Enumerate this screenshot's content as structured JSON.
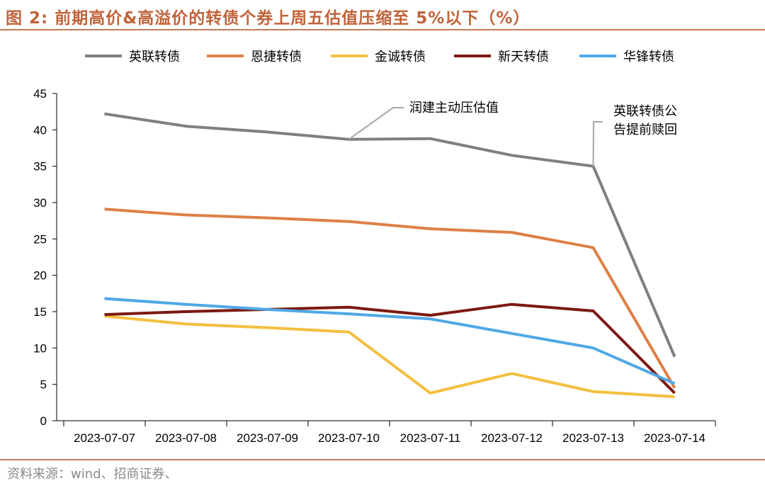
{
  "figure": {
    "title": "图 2:  前期高价&高溢价的转债个券上周五估值压缩至 5%以下（%）",
    "source": "资料来源：wind、招商证券、"
  },
  "colors": {
    "title": "#c0633a",
    "rule": "#c77b55"
  },
  "chart_data": {
    "type": "line",
    "categories": [
      "2023-07-07",
      "2023-07-08",
      "2023-07-09",
      "2023-07-10",
      "2023-07-11",
      "2023-07-12",
      "2023-07-13",
      "2023-07-14"
    ],
    "ylim": [
      0,
      45
    ],
    "yticks": [
      "0",
      "5",
      "10",
      "15",
      "20",
      "25",
      "30",
      "35",
      "40",
      "45"
    ],
    "legend_position": "top",
    "grid": false,
    "series": [
      {
        "name": "英联转债",
        "color": "#7f7f7f",
        "values": [
          42.2,
          40.5,
          39.7,
          38.7,
          38.8,
          36.5,
          35.0,
          8.8
        ]
      },
      {
        "name": "恩捷转债",
        "color": "#dd8047",
        "values": [
          29.1,
          28.3,
          27.9,
          27.4,
          26.4,
          25.9,
          23.8,
          4.5
        ]
      },
      {
        "name": "金诚转债",
        "color": "#f3bf3f",
        "values": [
          14.4,
          13.3,
          12.8,
          12.2,
          3.8,
          6.5,
          4.0,
          3.3
        ]
      },
      {
        "name": "新天转债",
        "color": "#7b1a12",
        "values": [
          14.6,
          15.0,
          15.3,
          15.6,
          14.5,
          16.0,
          15.1,
          3.8
        ]
      },
      {
        "name": "华锋转债",
        "color": "#4fa8e6",
        "values": [
          16.8,
          16.0,
          15.3,
          14.7,
          14.0,
          12.0,
          10.0,
          5.1
        ]
      }
    ],
    "annotations": [
      {
        "text": "润建主动压估值",
        "target_category": "2023-07-10",
        "target_value": 38.7
      },
      {
        "text": "英联转债公告提前赎回",
        "lines": [
          "英联转债公",
          "告提前赎回"
        ],
        "target_category": "2023-07-13",
        "target_value": 35.0
      }
    ]
  }
}
